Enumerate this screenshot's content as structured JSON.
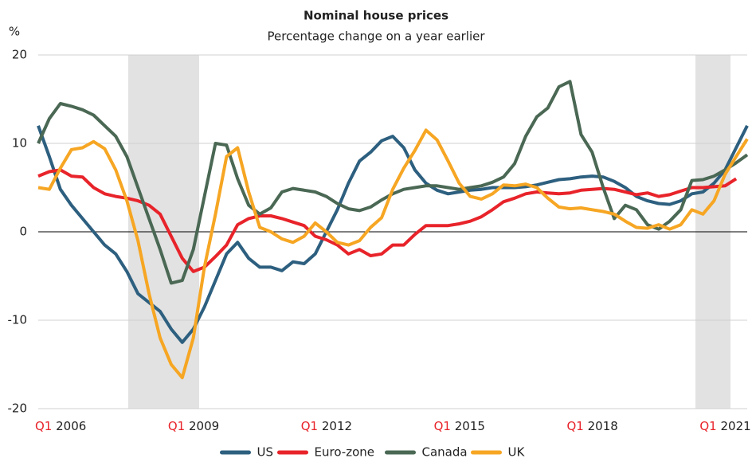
{
  "chart_data": {
    "type": "line",
    "title": "Nominal house prices",
    "subtitle": "Percentage change on a year earlier",
    "y_label": "%",
    "categories": [
      "Q1 2006",
      null,
      null,
      null,
      null,
      null,
      null,
      null,
      null,
      null,
      null,
      null,
      "Q1 2009",
      null,
      null,
      null,
      null,
      null,
      null,
      null,
      null,
      null,
      null,
      null,
      "Q1 2012",
      null,
      null,
      null,
      null,
      null,
      null,
      null,
      null,
      null,
      null,
      null,
      "Q1 2015",
      null,
      null,
      null,
      null,
      null,
      null,
      null,
      null,
      null,
      null,
      null,
      "Q1 2018",
      null,
      null,
      null,
      null,
      null,
      null,
      null,
      null,
      null,
      null,
      null,
      "Q1 2021",
      null,
      null,
      null,
      null
    ],
    "series": [
      {
        "name": "US",
        "color": "#2d5f7f",
        "values": [
          12,
          8.5,
          4.8,
          3,
          1.5,
          0,
          -1.5,
          -2.5,
          -4.5,
          -7,
          -8,
          -9,
          -11,
          -12.5,
          -11,
          -8.5,
          -5.5,
          -2.5,
          -1.2,
          -3,
          -4,
          -4,
          -4.4,
          -3.4,
          -3.6,
          -2.5,
          0,
          2.5,
          5.5,
          8,
          9,
          10.3,
          10.8,
          9.5,
          7,
          5.5,
          4.7,
          4.3,
          4.5,
          4.7,
          4.8,
          5,
          5,
          5,
          5.1,
          5.3,
          5.6,
          5.9,
          6,
          6.2,
          6.3,
          6.2,
          5.7,
          5,
          4,
          3.5,
          3.2,
          3.1,
          3.5,
          4.3,
          4.5,
          5.5,
          7,
          9.5,
          12
        ]
      },
      {
        "name": "Euro-zone",
        "color": "#e8232a",
        "values": [
          6.3,
          6.8,
          7,
          6.3,
          6.2,
          5,
          4.3,
          4,
          3.8,
          3.5,
          3,
          2,
          -0.5,
          -3,
          -4.5,
          -4,
          -2.8,
          -1.5,
          0.8,
          1.5,
          1.8,
          1.8,
          1.5,
          1.1,
          0.7,
          -0.5,
          -0.9,
          -1.5,
          -2.5,
          -2,
          -2.7,
          -2.5,
          -1.5,
          -1.5,
          -0.3,
          0.7,
          0.7,
          0.7,
          0.9,
          1.2,
          1.7,
          2.5,
          3.4,
          3.8,
          4.3,
          4.5,
          4.4,
          4.3,
          4.4,
          4.7,
          4.8,
          4.9,
          4.8,
          4.5,
          4.2,
          4.4,
          4,
          4.2,
          4.6,
          5,
          5,
          5.1,
          5.2,
          6,
          null
        ]
      },
      {
        "name": "Canada",
        "color": "#4a6854",
        "values": [
          10,
          12.8,
          14.5,
          14.2,
          13.8,
          13.2,
          12,
          10.8,
          8.5,
          5,
          1.5,
          -2,
          -5.8,
          -5.5,
          -2,
          4,
          10,
          9.8,
          6,
          3,
          2,
          2.7,
          4.5,
          4.9,
          4.7,
          4.5,
          4,
          3.2,
          2.6,
          2.4,
          2.8,
          3.6,
          4.3,
          4.8,
          5,
          5.2,
          5.2,
          5,
          4.8,
          5,
          5.2,
          5.6,
          6.2,
          7.7,
          10.8,
          13,
          14,
          16.4,
          17,
          11,
          9,
          5,
          1.5,
          3,
          2.5,
          0.8,
          0.3,
          1.2,
          2.5,
          5.8,
          5.9,
          6.3,
          7,
          7.8,
          8.7
        ]
      },
      {
        "name": "UK",
        "color": "#f6a623",
        "values": [
          5,
          4.8,
          7.2,
          9.3,
          9.5,
          10.2,
          9.4,
          7,
          3.5,
          -1,
          -7,
          -12,
          -15,
          -16.5,
          -12,
          -4,
          2,
          8.5,
          9.5,
          4.5,
          0.5,
          0,
          -0.8,
          -1.2,
          -0.5,
          1,
          0,
          -1.2,
          -1.5,
          -1,
          0.5,
          1.6,
          4.8,
          7.2,
          9.2,
          11.5,
          10.4,
          8,
          5.5,
          4,
          3.7,
          4.3,
          5.3,
          5.2,
          5.4,
          5,
          3.8,
          2.8,
          2.6,
          2.7,
          2.5,
          2.3,
          2,
          1.2,
          0.5,
          0.4,
          0.8,
          0.3,
          0.8,
          2.5,
          2,
          3.5,
          6.5,
          8.5,
          10.5
        ]
      }
    ],
    "ylim": [
      -20,
      20
    ],
    "yticks": [
      -20,
      -10,
      0,
      10,
      20
    ],
    "grid": true,
    "legend": "bottom"
  }
}
